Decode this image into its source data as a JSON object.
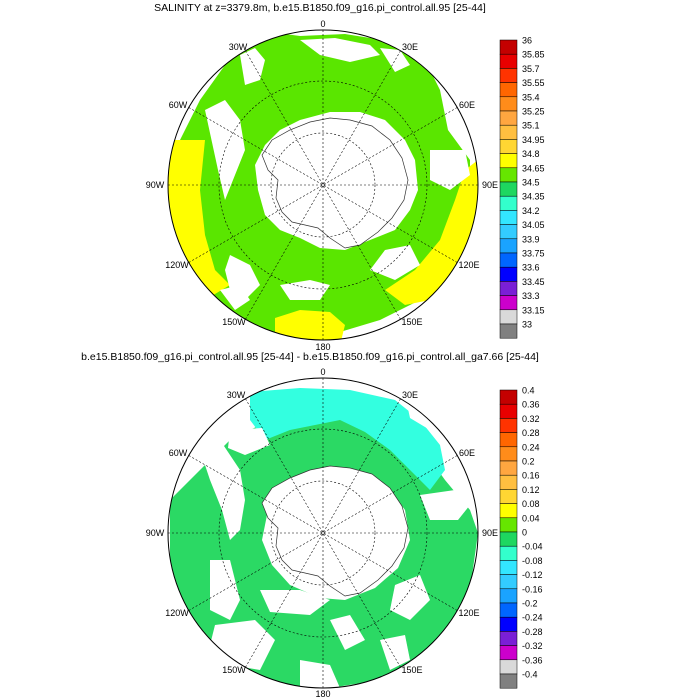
{
  "maps": [
    {
      "title": "SALINITY at z=3379.8m, b.e15.B1850.f09_g16.pi_control.all.95 [25-44]",
      "colorbar_labels": [
        "36",
        "35.85",
        "35.7",
        "35.55",
        "35.4",
        "35.25",
        "35.1",
        "34.95",
        "34.8",
        "34.65",
        "34.5",
        "34.35",
        "34.2",
        "34.05",
        "33.9",
        "33.75",
        "33.6",
        "33.45",
        "33.3",
        "33.15",
        "33"
      ]
    },
    {
      "title": "b.e15.B1850.f09_g16.pi_control.all.95 [25-44] - b.e15.B1850.f09_g16.pi_control.all_ga7.66 [25-44]",
      "colorbar_labels": [
        "0.4",
        "0.36",
        "0.32",
        "0.28",
        "0.24",
        "0.2",
        "0.16",
        "0.12",
        "0.08",
        "0.04",
        "0",
        "-0.04",
        "-0.08",
        "-0.12",
        "-0.16",
        "-0.2",
        "-0.24",
        "-0.28",
        "-0.32",
        "-0.36",
        "-0.4"
      ]
    }
  ],
  "lon_labels": {
    "top": "0",
    "top_left": "30W",
    "top_right": "30E",
    "left_upper": "60W",
    "right_upper": "60E",
    "left": "90W",
    "right": "90E",
    "left_lower": "120W",
    "right_lower": "120E",
    "bottom_left": "150W",
    "bottom_right": "150E",
    "bottom": "180"
  },
  "colorbar_colors": [
    "#c40000",
    "#e80000",
    "#ff3300",
    "#ff6600",
    "#ff8c1a",
    "#ffa640",
    "#ffbf40",
    "#ffd633",
    "#ffff00",
    "#66e600",
    "#1ed760",
    "#33ffcc",
    "#33e6ff",
    "#33ccff",
    "#1aa3ff",
    "#0066ff",
    "#0000ff",
    "#7a1fd6",
    "#cc00cc",
    "#d9d9d9",
    "#808080"
  ],
  "colors": {
    "land": "#ffffff",
    "map1_main": "#5ae600",
    "map1_high": "#ffff00",
    "map2_main": "#2bd964",
    "map2_low": "#33ffe0"
  }
}
